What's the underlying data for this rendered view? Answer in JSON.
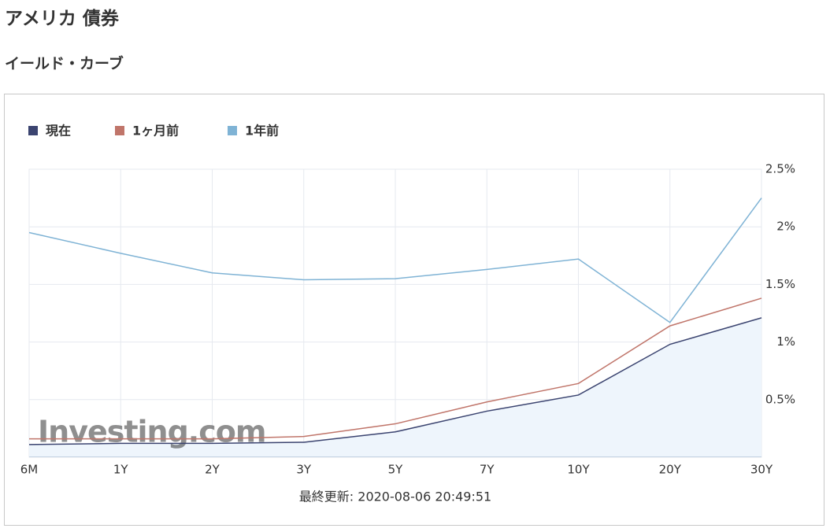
{
  "header": {
    "title": "アメリカ 債券",
    "subtitle": "イールド・カーブ"
  },
  "chart_data": {
    "type": "line",
    "categories": [
      "6M",
      "1Y",
      "2Y",
      "3Y",
      "5Y",
      "7Y",
      "10Y",
      "20Y",
      "30Y"
    ],
    "series": [
      {
        "name": "現在",
        "color": "#3b4470",
        "legend_color": "#5c63a8",
        "fill": "#eef5fc",
        "values": [
          0.11,
          0.12,
          0.12,
          0.13,
          0.22,
          0.4,
          0.54,
          0.98,
          1.21
        ]
      },
      {
        "name": "1ヶ月前",
        "color": "#c0756a",
        "legend_color": "#b0625a",
        "values": [
          0.16,
          0.16,
          0.16,
          0.18,
          0.29,
          0.48,
          0.64,
          1.14,
          1.38
        ]
      },
      {
        "name": "1年前",
        "color": "#7fb3d5",
        "legend_color": "#5b8db5",
        "values": [
          1.95,
          1.77,
          1.6,
          1.54,
          1.55,
          1.63,
          1.72,
          1.17,
          2.25
        ]
      }
    ],
    "ylim": [
      0,
      2.5
    ],
    "yticks": [
      {
        "value": 0.5,
        "label": "0.5%"
      },
      {
        "value": 1,
        "label": "1%"
      },
      {
        "value": 1.5,
        "label": "1.5%"
      },
      {
        "value": 2,
        "label": "2%"
      },
      {
        "value": 2.5,
        "label": "2.5%"
      }
    ],
    "grid": true,
    "watermark": "Investing.com",
    "footer": "最終更新: 2020-08-06 20:49:51"
  }
}
